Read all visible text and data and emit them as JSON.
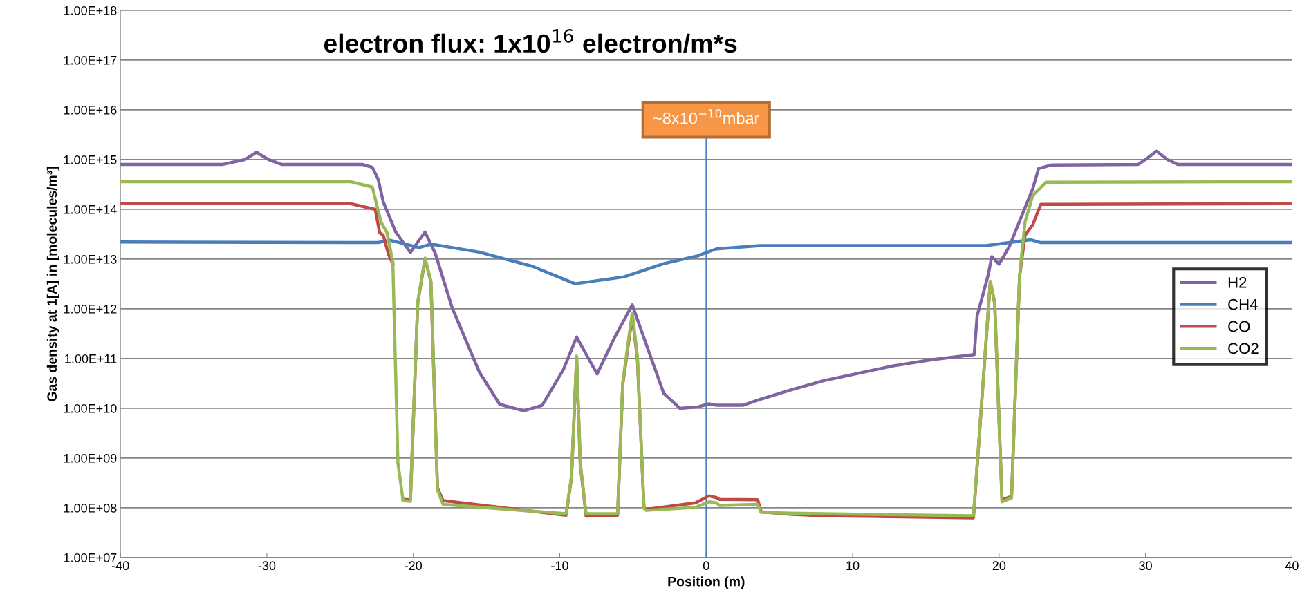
{
  "chart_data": {
    "type": "line",
    "title": "electron flux: 1x10$^{16}$ electron/m*s",
    "xlabel": "Position (m)",
    "ylabel": "Gas density at 1[A] in [molecules/m³]",
    "log": "y",
    "grid": "y",
    "legend": "right",
    "line_style": "solid",
    "marker": "none",
    "xlim": [
      -40,
      40
    ],
    "xticks": [
      -40,
      -30,
      -20,
      -10,
      0,
      10,
      20,
      30,
      40
    ],
    "ylim": [
      10000000.0,
      1e+18
    ],
    "yticks": [
      {
        "value": 10000000.0,
        "label": "1.00E+07"
      },
      {
        "value": 100000000.0,
        "label": "1.00E+08"
      },
      {
        "value": 1000000000.0,
        "label": "1.00E+09"
      },
      {
        "value": 10000000000.0,
        "label": "1.00E+10"
      },
      {
        "value": 100000000000.0,
        "label": "1.00E+11"
      },
      {
        "value": 1000000000000.0,
        "label": "1.00E+12"
      },
      {
        "value": 10000000000000.0,
        "label": "1.00E+13"
      },
      {
        "value": 100000000000000.0,
        "label": "1.00E+14"
      },
      {
        "value": 1000000000000000.0,
        "label": "1.00E+15"
      },
      {
        "value": 1e+16,
        "label": "1.00E+16"
      },
      {
        "value": 1e+17,
        "label": "1.00E+17"
      },
      {
        "value": 1e+18,
        "label": "1.00E+18"
      }
    ],
    "ref_lines": [
      {
        "axis": "x",
        "value": 0,
        "label": "~8x10$^{−10}$mbar",
        "color": "#4a7ebb",
        "line_style": "solid"
      }
    ],
    "series": [
      {
        "name": "H2",
        "color": "#8064a2",
        "x": [
          -40,
          -33,
          -31.5,
          -30.7,
          -29.9,
          -29,
          -23.5,
          -22.8,
          -22.4,
          -22.05,
          -21.2,
          -20.2,
          -19.2,
          -18.5,
          -17.35,
          -15.5,
          -14.1,
          -12.45,
          -11.2,
          -9.75,
          -8.85,
          -7.45,
          -6.3,
          -5.05,
          -3.8,
          -2.9,
          -1.8,
          -0.55,
          0.19,
          0.7,
          2.5,
          3.6,
          5.9,
          8.05,
          12.75,
          15.45,
          18.3,
          18.5,
          18.9,
          19.27,
          19.5,
          20.0,
          20.7,
          21.6,
          22.3,
          22.7,
          23.6,
          29.5,
          30.0,
          30.75,
          31.5,
          32.2,
          40
        ],
        "values": [
          800000000000000.0,
          800000000000000.0,
          1000000000000000.0,
          1400000000000000.0,
          1000000000000000.0,
          800000000000000.0,
          800000000000000.0,
          700000000000000.0,
          400000000000000.0,
          140000000000000.0,
          35000000000000.0,
          13500000000000.0,
          35000000000000.0,
          13000000000000.0,
          1050000000000.0,
          54000000000.0,
          12000000000.0,
          8900000000.0,
          11500000000.0,
          60000000000.0,
          270000000000.0,
          49000000000.0,
          250000000000.0,
          1200000000000.0,
          110000000000.0,
          20000000000.0,
          10000000000.0,
          10700000000.0,
          12300000000.0,
          11500000000.0,
          11500000000.0,
          14800000000.0,
          24000000000.0,
          36000000000.0,
          71000000000.0,
          95000000000.0,
          120000000000.0,
          720000000000.0,
          1950000000000.0,
          5000000000000.0,
          11200000000000.0,
          7900000000000.0,
          18000000000000.0,
          81000000000000.0,
          260000000000000.0,
          660000000000000.0,
          780000000000000.0,
          800000000000000.0,
          1000000000000000.0,
          1480000000000000.0,
          1000000000000000.0,
          800000000000000.0,
          800000000000000.0
        ]
      },
      {
        "name": "CH4",
        "color": "#4a7ebb",
        "x": [
          -40,
          -22.4,
          -21.6,
          -19.6,
          -18.8,
          -15.5,
          -11.9,
          -8.95,
          -5.6,
          -2.9,
          -0.55,
          0.7,
          3.7,
          19.1,
          22.15,
          22.85,
          40
        ],
        "values": [
          22000000000000.0,
          21500000000000.0,
          24000000000000.0,
          17000000000000.0,
          20000000000000.0,
          13800000000000.0,
          7200000000000.0,
          3200000000000.0,
          4400000000000.0,
          8100000000000.0,
          11700000000000.0,
          16000000000000.0,
          18600000000000.0,
          18600000000000.0,
          24500000000000.0,
          21500000000000.0,
          21500000000000.0
        ]
      },
      {
        "name": "CO",
        "color": "#be4b48",
        "x": [
          -40,
          -24.3,
          -22.6,
          -22.3,
          -22.05,
          -21.7,
          -21.4,
          -21.05,
          -20.7,
          -20.2,
          -19.7,
          -19.2,
          -18.8,
          -18.35,
          -17.97,
          -9.57,
          -9.2,
          -8.85,
          -8.6,
          -8.2,
          -6.05,
          -5.7,
          -5.05,
          -4.7,
          -4.25,
          -4.1,
          -0.73,
          0.19,
          0.7,
          0.9,
          3.52,
          3.75,
          5.7,
          8.0,
          18.25,
          19.4,
          19.7,
          20.2,
          20.85,
          21.4,
          21.77,
          22.3,
          22.85,
          40
        ],
        "values": [
          130000000000000.0,
          130000000000000.0,
          100000000000000.0,
          34000000000000.0,
          30000000000000.0,
          12600000000000.0,
          8000000000000.0,
          null,
          148000000.0,
          145000000.0,
          1300000000000.0,
          10000000000000.0,
          3500000000000.0,
          250000000.0,
          140000000.0,
          71000000.0,
          400000000.0,
          100000000000.0,
          750000000.0,
          68000000.0,
          71000000.0,
          30000000000.0,
          710000000000.0,
          100000000000.0,
          100000000.0,
          93000000.0,
          126000000.0,
          174000000.0,
          160000000.0,
          148000000.0,
          145000000.0,
          83000000.0,
          74000000.0,
          69000000.0,
          63000000.0,
          3500000000000.0,
          1300000000000.0,
          145000000.0,
          170000000.0,
          4500000000000.0,
          30000000000000.0,
          49000000000000.0,
          126000000000000.0,
          130000000000000.0
        ]
      },
      {
        "name": "CO2",
        "color": "#98b954",
        "x": [
          -40,
          -24.3,
          -22.8,
          -22.2,
          -21.8,
          -21.4,
          -21.05,
          -20.7,
          -20.2,
          -19.7,
          -19.2,
          -18.8,
          -18.35,
          -17.97,
          -9.57,
          -9.2,
          -8.85,
          -8.6,
          -8.2,
          -6.05,
          -5.7,
          -5.05,
          -4.7,
          -4.25,
          -4.1,
          -0.73,
          0.19,
          0.7,
          0.9,
          3.52,
          3.75,
          5.7,
          8.0,
          18.25,
          19.4,
          19.7,
          20.2,
          20.85,
          21.4,
          21.77,
          22.3,
          23.2,
          40
        ],
        "values": [
          360000000000000.0,
          360000000000000.0,
          280000000000000.0,
          55000000000000.0,
          34000000000000.0,
          8700000000000.0,
          790000000.0,
          140000000.0,
          135000000.0,
          1350000000000.0,
          10500000000000.0,
          3600000000000.0,
          230000000.0,
          117000000.0,
          76000000.0,
          430000000.0,
          112000000000.0,
          790000000.0,
          76000000.0,
          76000000.0,
          33000000000.0,
          830000000000.0,
          112000000000.0,
          98000000.0,
          89000000.0,
          102000000.0,
          132000000.0,
          126000000.0,
          112000000.0,
          117000000.0,
          81000000.0,
          78000000.0,
          76000000.0,
          69000000.0,
          3600000000000.0,
          1350000000000.0,
          132000000.0,
          158000000.0,
          4700000000000.0,
          55000000000000.0,
          190000000000000.0,
          350000000000000.0,
          360000000000000.0
        ]
      }
    ]
  }
}
